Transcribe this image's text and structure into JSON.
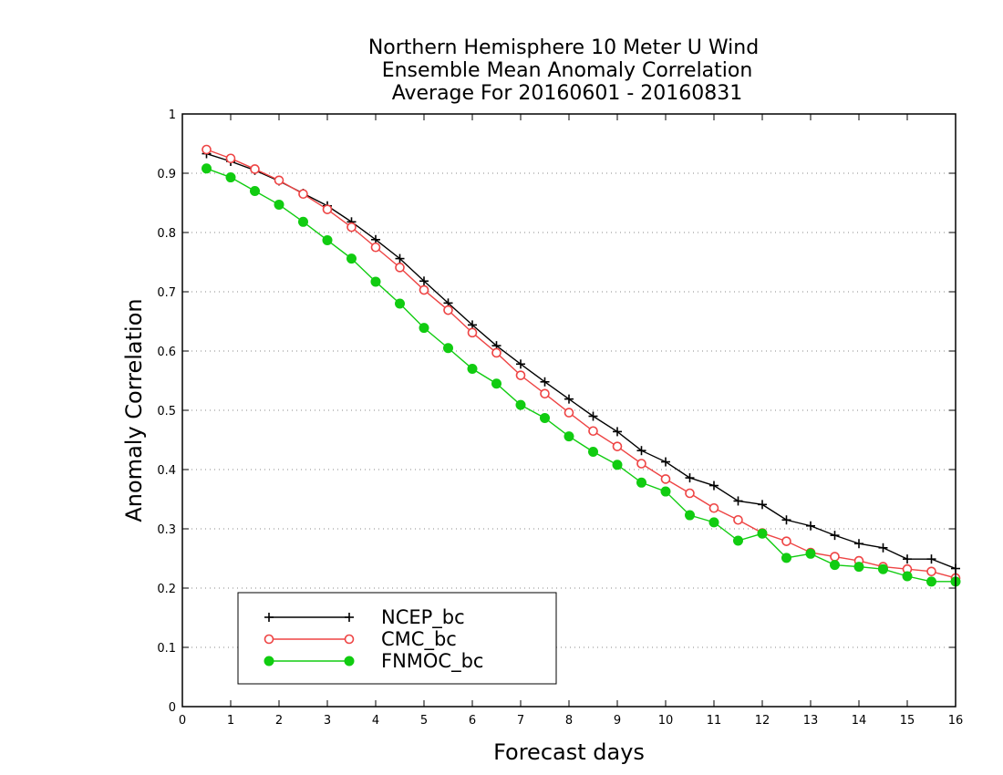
{
  "chart_data": {
    "type": "line",
    "title": [
      "Northern Hemisphere 10 Meter U Wind",
      "Ensemble Mean Anomaly Correlation",
      "Average For 20160601 - 20160831"
    ],
    "xlabel": "Forecast days",
    "ylabel": "Anomaly Correlation",
    "xlim": [
      0,
      16
    ],
    "ylim": [
      0,
      1
    ],
    "xticks": [
      "0",
      "1",
      "2",
      "3",
      "4",
      "5",
      "6",
      "7",
      "8",
      "9",
      "10",
      "11",
      "12",
      "13",
      "14",
      "15",
      "16"
    ],
    "yticks": [
      "0",
      "0.1",
      "0.2",
      "0.3",
      "0.4",
      "0.5",
      "0.6",
      "0.7",
      "0.8",
      "0.9",
      "1"
    ],
    "grid": "horizontal dotted",
    "legend_position": "bottom-left",
    "x": [
      0.5,
      1,
      1.5,
      2,
      2.5,
      3,
      3.5,
      4,
      4.5,
      5,
      5.5,
      6,
      6.5,
      7,
      7.5,
      8,
      8.5,
      9,
      9.5,
      10,
      10.5,
      11,
      11.5,
      12,
      12.5,
      13,
      13.5,
      14,
      14.5,
      15,
      15.5,
      16
    ],
    "series": [
      {
        "name": "NCEP_bc",
        "color": "#000000",
        "marker": "plus",
        "values": [
          0.933,
          0.92,
          0.905,
          0.887,
          0.866,
          0.845,
          0.818,
          0.788,
          0.756,
          0.718,
          0.681,
          0.644,
          0.609,
          0.578,
          0.548,
          0.519,
          0.49,
          0.464,
          0.432,
          0.413,
          0.386,
          0.373,
          0.347,
          0.341,
          0.315,
          0.305,
          0.289,
          0.275,
          0.268,
          0.249,
          0.249,
          0.233
        ]
      },
      {
        "name": "CMC_bc",
        "color": "#ee4444",
        "marker": "open-circle",
        "values": [
          0.94,
          0.925,
          0.907,
          0.888,
          0.865,
          0.839,
          0.809,
          0.775,
          0.741,
          0.703,
          0.669,
          0.631,
          0.597,
          0.559,
          0.528,
          0.496,
          0.465,
          0.439,
          0.41,
          0.384,
          0.36,
          0.335,
          0.315,
          0.293,
          0.279,
          0.26,
          0.253,
          0.246,
          0.236,
          0.232,
          0.228,
          0.217
        ]
      },
      {
        "name": "FNMOC_bc",
        "color": "#11cc11",
        "marker": "filled-circle",
        "values": [
          0.908,
          0.893,
          0.87,
          0.847,
          0.818,
          0.787,
          0.756,
          0.717,
          0.68,
          0.639,
          0.605,
          0.57,
          0.545,
          0.509,
          0.487,
          0.456,
          0.43,
          0.408,
          0.378,
          0.363,
          0.323,
          0.311,
          0.28,
          0.292,
          0.251,
          0.258,
          0.239,
          0.236,
          0.232,
          0.22,
          0.211,
          0.211
        ]
      }
    ]
  }
}
